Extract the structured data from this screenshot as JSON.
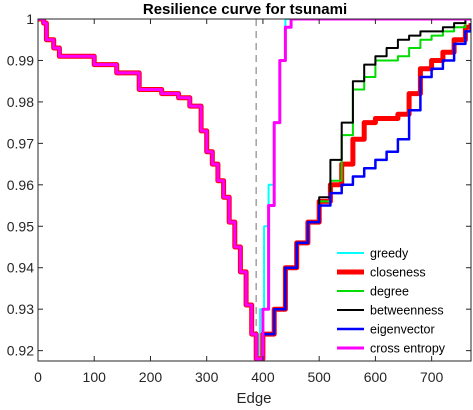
{
  "chart_data": {
    "type": "line",
    "title": "Resilience curve for tsunami",
    "xlabel": "Edge",
    "ylabel": "",
    "xlim": [
      0,
      770
    ],
    "ylim": [
      0.9175,
      1.0
    ],
    "xticks": [
      0,
      100,
      200,
      300,
      400,
      500,
      600,
      700
    ],
    "yticks": [
      0.92,
      0.93,
      0.94,
      0.95,
      0.96,
      0.97,
      0.98,
      0.99,
      1
    ],
    "ytick_labels": [
      "0.92",
      "0.93",
      "0.94",
      "0.95",
      "0.96",
      "0.97",
      "0.98",
      "0.99",
      "1"
    ],
    "grid": false,
    "legend_position": "lower-right",
    "marker": {
      "x": 388,
      "style": "dashed",
      "color": "#a0a0a0"
    },
    "common_prefix": {
      "x": [
        0,
        10,
        15,
        28,
        38,
        60,
        100,
        140,
        180,
        220,
        250,
        270,
        290,
        300,
        310,
        320,
        330,
        340,
        350,
        360,
        370,
        380,
        388
      ],
      "y": [
        1.0,
        0.999,
        0.995,
        0.993,
        0.991,
        0.991,
        0.989,
        0.987,
        0.983,
        0.982,
        0.981,
        0.979,
        0.973,
        0.968,
        0.965,
        0.961,
        0.957,
        0.951,
        0.945,
        0.939,
        0.931,
        0.924,
        0.918
      ]
    },
    "series": [
      {
        "name": "greedy",
        "color": "#00ffff",
        "width": 2,
        "x": [
          388,
          395,
          402,
          410,
          420,
          430,
          440,
          450,
          770
        ],
        "y": [
          0.918,
          0.93,
          0.95,
          0.96,
          0.975,
          0.99,
          1.0,
          1.0,
          1.0
        ]
      },
      {
        "name": "closeness",
        "color": "#ff0000",
        "width": 5,
        "x": [
          388,
          400,
          420,
          440,
          460,
          480,
          500,
          520,
          540,
          560,
          580,
          600,
          620,
          640,
          660,
          680,
          700,
          720,
          740,
          760,
          770
        ],
        "y": [
          0.918,
          0.924,
          0.93,
          0.94,
          0.946,
          0.951,
          0.956,
          0.96,
          0.965,
          0.971,
          0.975,
          0.976,
          0.976,
          0.977,
          0.982,
          0.988,
          0.99,
          0.992,
          0.995,
          0.998,
          0.999
        ]
      },
      {
        "name": "degree",
        "color": "#00dd00",
        "width": 2,
        "x": [
          388,
          400,
          420,
          440,
          460,
          480,
          500,
          520,
          540,
          560,
          580,
          600,
          620,
          640,
          660,
          680,
          700,
          720,
          740,
          760,
          770
        ],
        "y": [
          0.918,
          0.924,
          0.93,
          0.94,
          0.946,
          0.951,
          0.956,
          0.961,
          0.972,
          0.983,
          0.986,
          0.99,
          0.99,
          0.991,
          0.993,
          0.995,
          0.996,
          0.997,
          0.998,
          1.0,
          1.0
        ]
      },
      {
        "name": "betweenness",
        "color": "#000000",
        "width": 2,
        "x": [
          388,
          400,
          420,
          440,
          460,
          480,
          500,
          520,
          540,
          560,
          580,
          600,
          620,
          640,
          660,
          680,
          700,
          720,
          740,
          760,
          770
        ],
        "y": [
          0.918,
          0.924,
          0.93,
          0.94,
          0.946,
          0.951,
          0.957,
          0.966,
          0.975,
          0.985,
          0.989,
          0.991,
          0.993,
          0.995,
          0.996,
          0.997,
          0.997,
          0.998,
          0.999,
          1.0,
          1.0
        ]
      },
      {
        "name": "eigenvector",
        "color": "#0000ff",
        "width": 2.5,
        "x": [
          388,
          400,
          420,
          440,
          460,
          480,
          500,
          520,
          540,
          560,
          580,
          600,
          620,
          640,
          660,
          680,
          700,
          720,
          740,
          760,
          770
        ],
        "y": [
          0.918,
          0.924,
          0.93,
          0.94,
          0.946,
          0.951,
          0.955,
          0.958,
          0.96,
          0.962,
          0.964,
          0.966,
          0.968,
          0.971,
          0.978,
          0.986,
          0.988,
          0.99,
          0.994,
          0.997,
          0.999
        ]
      },
      {
        "name": "cross entropy",
        "color": "#ff00ff",
        "width": 3,
        "x": [
          388,
          400,
          410,
          420,
          430,
          440,
          450,
          770
        ],
        "y": [
          0.918,
          0.93,
          0.955,
          0.975,
          0.99,
          0.998,
          1.0,
          1.0
        ]
      }
    ]
  }
}
